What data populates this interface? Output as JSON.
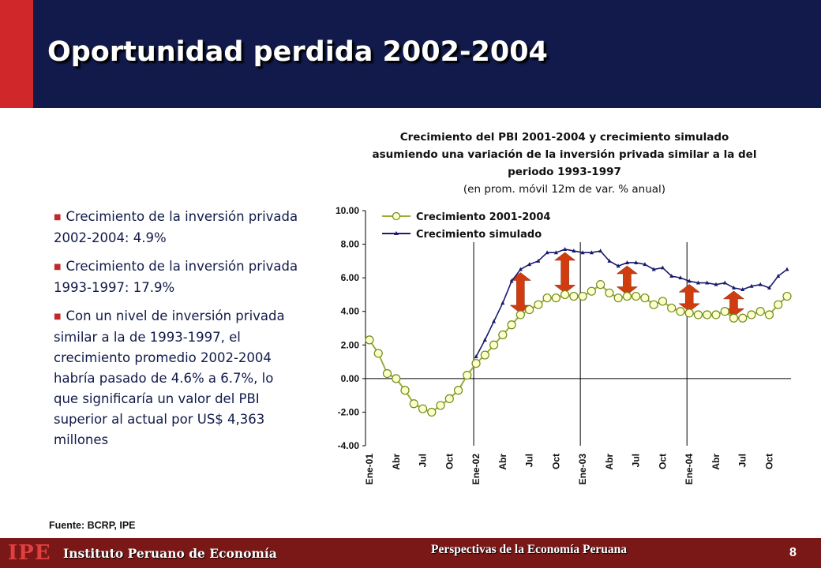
{
  "slide": {
    "title": "Oportunidad perdida 2002-2004",
    "page_number": "8",
    "source": "Fuente: BCRP, IPE",
    "accent_color": "#d0282a",
    "header_color": "#111a4a"
  },
  "bullets": [
    {
      "text": "Crecimiento de la inversión privada 2002-2004: 4.9%"
    },
    {
      "text": "Crecimiento de la inversión privada 1993-1997: 17.9%"
    },
    {
      "text": "Con un nivel de inversión privada similar a la de 1993-1997, el crecimiento promedio 2002-2004 habría pasado de 4.6% a 6.7%, lo que significaría un valor del PBI superior al actual por US$ 4,363 millones"
    }
  ],
  "footer": {
    "logo": "IPE",
    "institution": "Instituto Peruano de Economía",
    "tagline": "Perspectivas de la Economía Peruana"
  },
  "chart_data": {
    "type": "line",
    "title": "Crecimiento del PBI 2001-2004 y crecimiento simulado asumiendo una variación de la inversión privada similar a la del periodo 1993-1997",
    "subtitle": "(en prom. móvil 12m de var. % anual)",
    "ylim": [
      -4,
      10
    ],
    "yticks": [
      "10.00",
      "8.00",
      "6.00",
      "4.00",
      "2.00",
      "0.00",
      "-2.00",
      "-4.00"
    ],
    "xtick_labels": [
      "Ene-01",
      "Abr",
      "Jul",
      "Oct",
      "Ene-02",
      "Abr",
      "Jul",
      "Oct",
      "Ene-03",
      "Abr",
      "Jul",
      "Oct",
      "Ene-04",
      "Abr",
      "Jul",
      "Oct"
    ],
    "legend_position": "top-left",
    "series": [
      {
        "name": "Crecimiento 2001-2004",
        "color": "#9aae3a",
        "marker": "circle",
        "start_index": 0,
        "values": [
          2.3,
          1.5,
          0.3,
          0.0,
          -0.7,
          -1.5,
          -1.8,
          -2.0,
          -1.6,
          -1.2,
          -0.7,
          0.2,
          0.9,
          1.4,
          2.0,
          2.6,
          3.2,
          3.8,
          4.1,
          4.4,
          4.8,
          4.8,
          5.0,
          4.9,
          4.9,
          5.2,
          5.6,
          5.1,
          4.8,
          4.9,
          4.9,
          4.8,
          4.4,
          4.6,
          4.2,
          4.0,
          3.9,
          3.8,
          3.8,
          3.8,
          4.0,
          3.6,
          3.6,
          3.8,
          4.0,
          3.8,
          4.4,
          4.9
        ]
      },
      {
        "name": "Crecimiento simulado",
        "color": "#1a1a6e",
        "marker": "triangle",
        "start_index": 12,
        "values": [
          1.3,
          2.3,
          3.4,
          4.5,
          5.8,
          6.5,
          6.8,
          7.0,
          7.5,
          7.5,
          7.7,
          7.6,
          7.5,
          7.5,
          7.6,
          7.0,
          6.7,
          6.9,
          6.9,
          6.8,
          6.5,
          6.6,
          6.1,
          6.0,
          5.8,
          5.7,
          5.7,
          5.6,
          5.7,
          5.4,
          5.3,
          5.5,
          5.6,
          5.4,
          6.1,
          6.5
        ]
      }
    ],
    "arrow_color": "#d03c10"
  }
}
